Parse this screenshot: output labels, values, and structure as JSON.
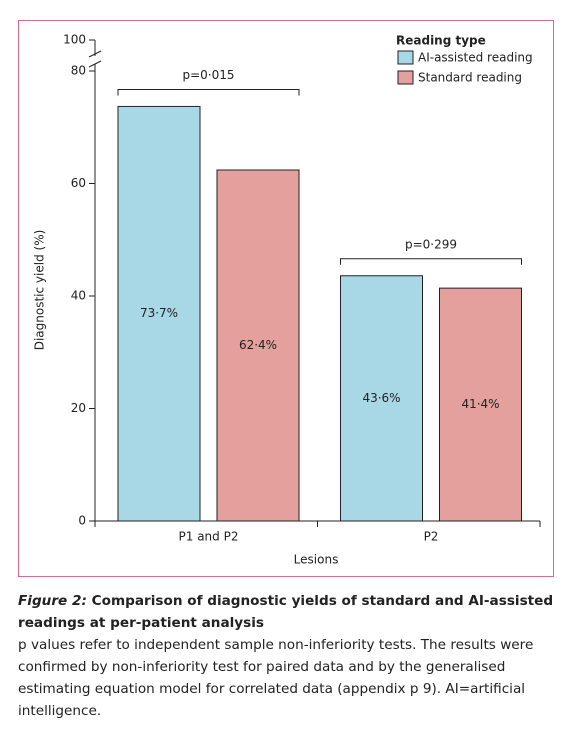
{
  "chart_data": {
    "type": "bar",
    "categories": [
      "P1 and P2",
      "P2"
    ],
    "series": [
      {
        "name": "AI-assisted reading",
        "color": "#a8d8e6",
        "values": [
          73.7,
          43.6
        ],
        "value_labels": [
          "73·7%",
          "43·6%"
        ]
      },
      {
        "name": "Standard reading",
        "color": "#e3a09d",
        "values": [
          62.4,
          41.4
        ],
        "value_labels": [
          "62·4%",
          "41·4%"
        ]
      }
    ],
    "ylim": [
      0,
      80
    ],
    "yticks": [
      0,
      20,
      40,
      60,
      80
    ],
    "break_tick": 100,
    "ylabel": "Diagnostic yield (%)",
    "xlabel": "Lesions",
    "legend_title": "Reading type",
    "legend": "top-right",
    "annotations": [
      "p=0·015",
      "p=0·299"
    ]
  },
  "caption": {
    "label": "Figure 2:",
    "title": "Comparison of diagnostic yields of standard and AI-assisted readings at per-patient analysis",
    "body": "p values refer to independent sample non-inferiority tests. The results were confirmed by non-inferiority test for paired data and by the generalised estimating equation model for correlated data (appendix p 9). AI=artificial intelligence."
  }
}
